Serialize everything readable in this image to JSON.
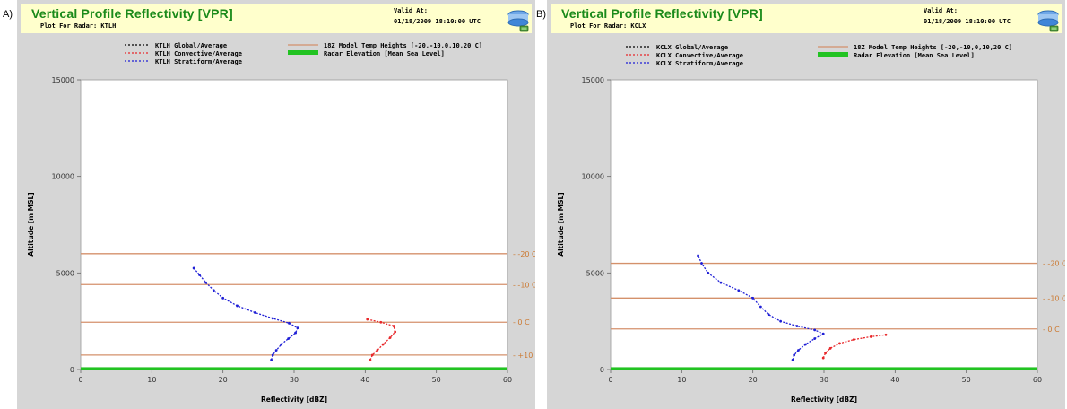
{
  "colors": {
    "global": "#000000",
    "convective": "#e8272a",
    "stratiform": "#1f1fd6",
    "temp_heights": "#d4916b",
    "radar_elevation": "#22c322",
    "title": "#1a8a1a",
    "header_bg": "#ffffcc",
    "panel_bg": "#d6d6d6"
  },
  "panels": [
    {
      "letter": "A)",
      "title": "Vertical Profile Reflectivity [VPR]",
      "subtitle": "Plot For Radar: KTLH",
      "valid_label": "Valid At:",
      "valid_time": "01/18/2009 18:10:00 UTC",
      "icon": "radar-dish-icon",
      "legend": {
        "global": "KTLH Global/Average",
        "convective": "KTLH Convective/Average",
        "stratiform": "KTLH Stratiform/Average",
        "temp": "18Z Model Temp Heights [-20,-10,0,10,20 C]",
        "radar": "Radar Elevation [Mean Sea Level]"
      }
    },
    {
      "letter": "B)",
      "title": "Vertical Profile Reflectivity [VPR]",
      "subtitle": "Plot For Radar: KCLX",
      "valid_label": "Valid At:",
      "valid_time": "01/18/2009 18:10:00 UTC",
      "icon": "radar-dish-icon",
      "legend": {
        "global": "KCLX Global/Average",
        "convective": "KCLX Convective/Average",
        "stratiform": "KCLX Stratiform/Average",
        "temp": "18Z Model Temp Heights [-20,-10,0,10,20 C]",
        "radar": "Radar Elevation [Mean Sea Level]"
      }
    }
  ],
  "chart_data": [
    {
      "type": "line",
      "xlabel": "Reflectivity [dBZ]",
      "ylabel": "Altitude [m MSL]",
      "xlim": [
        0,
        60
      ],
      "ylim": [
        0,
        15000
      ],
      "xticks": [
        0,
        10,
        20,
        30,
        40,
        50,
        60
      ],
      "yticks": [
        0,
        5000,
        10000,
        15000
      ],
      "grid": false,
      "legend_placement": "top",
      "temp_heights": [
        {
          "label": "-20 C",
          "altitude": 6000
        },
        {
          "label": "-10 C",
          "altitude": 4400
        },
        {
          "label": "0 C",
          "altitude": 2450
        },
        {
          "label": "+10 C",
          "altitude": 750
        }
      ],
      "radar_elevation": 50,
      "series": [
        {
          "key": "stratiform",
          "points": [
            [
              26.8,
              500
            ],
            [
              27.0,
              750
            ],
            [
              27.5,
              1000
            ],
            [
              28.2,
              1300
            ],
            [
              29.2,
              1600
            ],
            [
              30.2,
              1900
            ],
            [
              30.5,
              2150
            ],
            [
              29.3,
              2400
            ],
            [
              27.0,
              2650
            ],
            [
              24.5,
              2950
            ],
            [
              22.0,
              3300
            ],
            [
              20.0,
              3700
            ],
            [
              18.7,
              4100
            ],
            [
              17.6,
              4500
            ],
            [
              16.7,
              4900
            ],
            [
              15.9,
              5250
            ]
          ]
        },
        {
          "key": "convective",
          "points": [
            [
              40.7,
              500
            ],
            [
              41.0,
              750
            ],
            [
              41.7,
              1000
            ],
            [
              42.5,
              1300
            ],
            [
              43.5,
              1650
            ],
            [
              44.2,
              1950
            ],
            [
              44.0,
              2250
            ],
            [
              42.2,
              2450
            ],
            [
              40.3,
              2600
            ]
          ]
        }
      ]
    },
    {
      "type": "line",
      "xlabel": "Reflectivity [dBZ]",
      "ylabel": "Altitude [m MSL]",
      "xlim": [
        0,
        60
      ],
      "ylim": [
        0,
        15000
      ],
      "xticks": [
        0,
        10,
        20,
        30,
        40,
        50,
        60
      ],
      "yticks": [
        0,
        5000,
        10000,
        15000
      ],
      "grid": false,
      "legend_placement": "top",
      "temp_heights": [
        {
          "label": "-20 C",
          "altitude": 5500
        },
        {
          "label": "-10 C",
          "altitude": 3700
        },
        {
          "label": "0 C",
          "altitude": 2100
        }
      ],
      "radar_elevation": 50,
      "series": [
        {
          "key": "stratiform",
          "points": [
            [
              25.6,
              500
            ],
            [
              25.8,
              750
            ],
            [
              26.4,
              1000
            ],
            [
              27.4,
              1300
            ],
            [
              28.7,
              1600
            ],
            [
              29.9,
              1850
            ],
            [
              28.7,
              2050
            ],
            [
              26.2,
              2250
            ],
            [
              23.9,
              2500
            ],
            [
              22.2,
              2850
            ],
            [
              21.1,
              3250
            ],
            [
              20.0,
              3700
            ],
            [
              18.0,
              4100
            ],
            [
              15.5,
              4500
            ],
            [
              13.7,
              5000
            ],
            [
              12.8,
              5500
            ],
            [
              12.3,
              5900
            ]
          ]
        },
        {
          "key": "convective",
          "points": [
            [
              29.9,
              600
            ],
            [
              30.2,
              850
            ],
            [
              30.9,
              1100
            ],
            [
              32.2,
              1350
            ],
            [
              34.2,
              1550
            ],
            [
              36.6,
              1700
            ],
            [
              38.7,
              1800
            ]
          ]
        }
      ]
    }
  ]
}
